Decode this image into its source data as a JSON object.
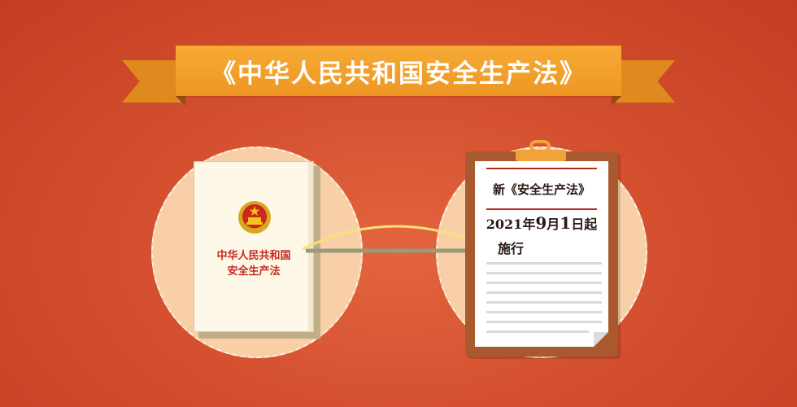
{
  "banner": {
    "title": "《中华人民共和国安全生产法》"
  },
  "book": {
    "title_line1": "中华人民共和国",
    "title_line2": "安全生产法"
  },
  "notice": {
    "title": "新《安全生产法》",
    "date_year": "2021年",
    "date_month_num": "9",
    "date_month_unit": "月",
    "date_day_num": "1",
    "date_suffix": "日起",
    "action": "施行"
  },
  "colors": {
    "background": "#d4502f",
    "ribbon": "#f09a2a",
    "circle": "#f9cfa8",
    "book_title": "#c8281e",
    "board": "#a85a2e",
    "rule_red": "#b72a22"
  },
  "icons": [
    "national-emblem-icon",
    "clipboard-clip-icon"
  ]
}
